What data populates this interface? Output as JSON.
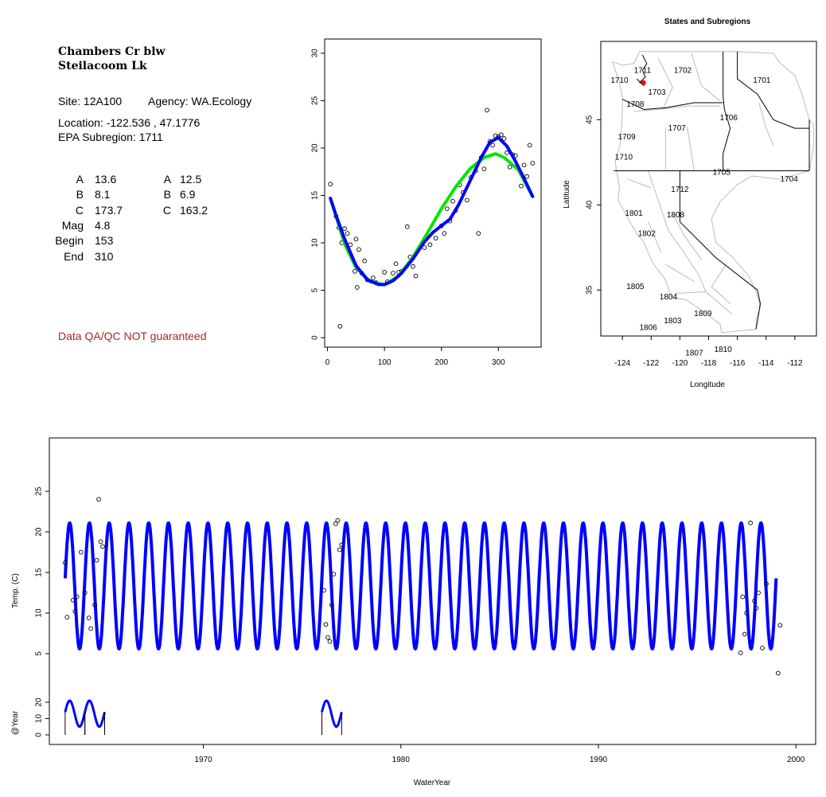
{
  "info": {
    "station_line1": "Chambers Cr blw",
    "station_line2": "Steilacoom Lk",
    "site": "Site: 12A100",
    "agency": "Agency: WA.Ecology",
    "location": "Location: -122.536 , 47.1776",
    "subregion": "EPA Subregion: 1711",
    "params": [
      {
        "label1": "A",
        "val1": "13.6",
        "label2": "A",
        "val2": "12.5"
      },
      {
        "label1": "B",
        "val1": "8.1",
        "label2": "B",
        "val2": "6.9"
      },
      {
        "label1": "C",
        "val1": "173.7",
        "label2": "C",
        "val2": "163.2"
      },
      {
        "label1": "Mag",
        "val1": "4.8",
        "label2": "",
        "val2": ""
      },
      {
        "label1": "Begin",
        "val1": "153",
        "label2": "",
        "val2": ""
      },
      {
        "label1": "End",
        "val1": "310",
        "label2": "",
        "val2": ""
      }
    ],
    "warning": "Data QA/QC NOT guaranteed",
    "warning_color": "#a52a2a"
  },
  "chart_data": [
    {
      "type": "scatter",
      "title": "",
      "xlabel": "",
      "ylabel": "",
      "xlim": [
        -5,
        375
      ],
      "ylim": [
        -1,
        31.5
      ],
      "xticks": [
        "0",
        "100",
        "200",
        "300"
      ],
      "yticks": [
        "0",
        "5",
        "10",
        "15",
        "20",
        "25",
        "30"
      ],
      "series": [
        {
          "values": [
            [
              5,
              16.2
            ],
            [
              15,
              12.8
            ],
            [
              20,
              11.6
            ],
            [
              22,
              1.2
            ],
            [
              25,
              10.0
            ],
            [
              30,
              11.5
            ],
            [
              35,
              11.0
            ],
            [
              40,
              9.8
            ],
            [
              48,
              7.0
            ],
            [
              50,
              10.4
            ],
            [
              52,
              5.3
            ],
            [
              55,
              9.3
            ],
            [
              60,
              6.8
            ],
            [
              65,
              8.1
            ],
            [
              70,
              6.1
            ],
            [
              80,
              6.3
            ],
            [
              85,
              5.8
            ],
            [
              100,
              6.9
            ],
            [
              105,
              5.9
            ],
            [
              115,
              6.8
            ],
            [
              120,
              7.8
            ],
            [
              125,
              6.9
            ],
            [
              130,
              7.0
            ],
            [
              140,
              11.7
            ],
            [
              145,
              8.5
            ],
            [
              150,
              7.5
            ],
            [
              155,
              6.5
            ],
            [
              170,
              9.5
            ],
            [
              180,
              9.8
            ],
            [
              190,
              10.5
            ],
            [
              200,
              11.8
            ],
            [
              205,
              11.0
            ],
            [
              210,
              13.6
            ],
            [
              215,
              12.3
            ],
            [
              220,
              14.4
            ],
            [
              225,
              13.4
            ],
            [
              232,
              16.1
            ],
            [
              238,
              15.3
            ],
            [
              245,
              14.5
            ],
            [
              252,
              16.9
            ],
            [
              260,
              17.6
            ],
            [
              265,
              11.0
            ],
            [
              270,
              19.0
            ],
            [
              275,
              17.8
            ],
            [
              280,
              24.0
            ],
            [
              285,
              20.7
            ],
            [
              290,
              20.3
            ],
            [
              295,
              21.3
            ],
            [
              300,
              21.2
            ],
            [
              305,
              21.4
            ],
            [
              310,
              21.0
            ],
            [
              315,
              19.5
            ],
            [
              320,
              18.0
            ],
            [
              325,
              19.3
            ],
            [
              330,
              19.2
            ],
            [
              340,
              16.0
            ],
            [
              345,
              18.2
            ],
            [
              350,
              17.0
            ],
            [
              355,
              20.3
            ],
            [
              360,
              18.4
            ]
          ],
          "marker": "open-circle"
        },
        {
          "color": "#00e600",
          "values": [
            [
              5,
              14.7
            ],
            [
              30,
              9.9
            ],
            [
              50,
              7.4
            ],
            [
              75,
              5.9
            ],
            [
              100,
              5.6
            ],
            [
              125,
              6.5
            ],
            [
              150,
              8.5
            ],
            [
              175,
              11.0
            ],
            [
              200,
              13.6
            ],
            [
              225,
              15.9
            ],
            [
              250,
              17.8
            ],
            [
              275,
              19.0
            ],
            [
              295,
              19.4
            ],
            [
              310,
              19.0
            ],
            [
              335,
              17.7
            ],
            [
              360,
              14.9
            ]
          ]
        },
        {
          "color": "#0000ff",
          "values": [
            [
              5,
              14.7
            ],
            [
              15,
              12.9
            ],
            [
              30,
              10.4
            ],
            [
              50,
              7.6
            ],
            [
              70,
              6.1
            ],
            [
              90,
              5.6
            ],
            [
              100,
              5.6
            ],
            [
              115,
              6.0
            ],
            [
              130,
              6.8
            ],
            [
              150,
              8.3
            ],
            [
              170,
              10.1
            ],
            [
              185,
              11.1
            ],
            [
              200,
              11.8
            ],
            [
              215,
              12.5
            ],
            [
              230,
              14.0
            ],
            [
              250,
              16.5
            ],
            [
              270,
              19.0
            ],
            [
              285,
              20.6
            ],
            [
              300,
              21.1
            ],
            [
              315,
              20.2
            ],
            [
              330,
              18.6
            ],
            [
              345,
              16.8
            ],
            [
              360,
              14.9
            ]
          ]
        }
      ]
    },
    {
      "type": "map",
      "title": "States and Subregions",
      "xlabel": "Longitude",
      "ylabel": "Latitude",
      "xlim": [
        -125.5,
        -110.5
      ],
      "ylim": [
        32.3,
        49.6
      ],
      "xticks": [
        "-124",
        "-122",
        "-120",
        "-118",
        "-116",
        "-114",
        "-112"
      ],
      "yticks": [
        "35",
        "40",
        "45"
      ],
      "region_labels": [
        "1711",
        "1710",
        "1702",
        "1701",
        "1703",
        "1708",
        "1706",
        "1707",
        "1709",
        "1710",
        "1705",
        "1704",
        "1712",
        "1801",
        "1808",
        "1802",
        "1805",
        "1804",
        "1803",
        "1809",
        "1806",
        "1807",
        "1810"
      ],
      "site_marker": {
        "lon": -122.536,
        "lat": 47.1776,
        "color": "#ff0000"
      }
    },
    {
      "type": "line",
      "title": "",
      "xlabel": "WaterYear",
      "ylabel": "Temp. (C)",
      "ylabel2": "@Year",
      "xlim": [
        1962.2,
        2001.0
      ],
      "ylim": [
        0.5,
        30
      ],
      "xticks": [
        "1970",
        "1980",
        "1990",
        "2000"
      ],
      "yticks": [
        "5",
        "10",
        "15",
        "20",
        "25"
      ],
      "yticks2": [
        "0",
        "10",
        "20"
      ],
      "series": [
        {
          "name": "fit",
          "color": "#0000ff",
          "x_start": 1963.0,
          "x_end": 1999.0,
          "mean": 13.35,
          "amplitude": 7.75,
          "period_years": 1.0
        },
        {
          "marker": "open-circle",
          "values": [
            [
              1963.0,
              16.2
            ],
            [
              1963.1,
              9.5
            ],
            [
              1963.4,
              11.6
            ],
            [
              1963.5,
              10.2
            ],
            [
              1963.6,
              12.0
            ],
            [
              1963.8,
              17.5
            ],
            [
              1964.0,
              12.5
            ],
            [
              1964.2,
              9.4
            ],
            [
              1964.3,
              8.1
            ],
            [
              1964.5,
              11.0
            ],
            [
              1964.6,
              16.5
            ],
            [
              1964.7,
              24.0
            ],
            [
              1964.8,
              18.8
            ],
            [
              1964.9,
              18.2
            ],
            [
              1976.1,
              12.8
            ],
            [
              1976.2,
              8.6
            ],
            [
              1976.3,
              7.0
            ],
            [
              1976.4,
              6.5
            ],
            [
              1976.5,
              11.0
            ],
            [
              1976.6,
              14.8
            ],
            [
              1976.7,
              21.0
            ],
            [
              1976.8,
              21.4
            ],
            [
              1976.9,
              17.8
            ],
            [
              1977.0,
              18.4
            ],
            [
              1997.2,
              5.1
            ],
            [
              1997.3,
              12.0
            ],
            [
              1997.4,
              7.4
            ],
            [
              1997.5,
              10.0
            ],
            [
              1997.7,
              21.1
            ],
            [
              1997.9,
              11.5
            ],
            [
              1998.0,
              10.6
            ],
            [
              1998.1,
              12.5
            ],
            [
              1998.3,
              5.7
            ],
            [
              1998.5,
              13.6
            ],
            [
              1999.2,
              8.5
            ],
            [
              1999.1,
              2.6
            ]
          ]
        }
      ],
      "year_markers": [
        {
          "x_start": 1963.0,
          "x_end": 1964.0
        },
        {
          "x_start": 1964.0,
          "x_end": 1965.0
        },
        {
          "x_start": 1976.0,
          "x_end": 1977.0
        }
      ]
    }
  ]
}
